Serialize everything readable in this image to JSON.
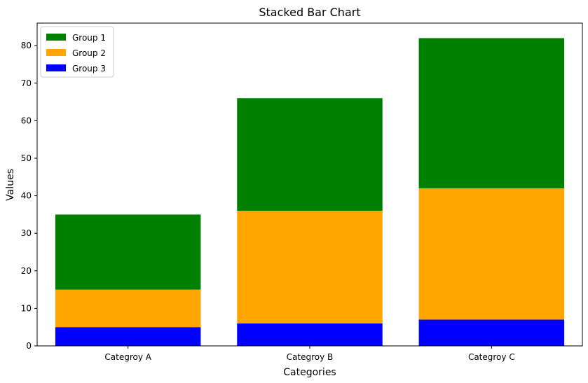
{
  "chart_data": {
    "type": "bar",
    "stacked": true,
    "title": "Stacked Bar Chart",
    "xlabel": "Categories",
    "ylabel": "Values",
    "categories": [
      "Categroy A",
      "Categroy B",
      "Categroy C"
    ],
    "ylim": [
      0,
      86
    ],
    "yticks": [
      0,
      10,
      20,
      30,
      40,
      50,
      60,
      70,
      80
    ],
    "grid": false,
    "legend_position": "top-left",
    "series": [
      {
        "name": "Group 3",
        "color": "#0000ff",
        "values": [
          5,
          6,
          7
        ]
      },
      {
        "name": "Group 2",
        "color": "#ffa500",
        "values": [
          10,
          30,
          35
        ]
      },
      {
        "name": "Group 1",
        "color": "#008000",
        "values": [
          20,
          30,
          40
        ]
      }
    ],
    "legend_order": [
      "Group 1",
      "Group 2",
      "Group 3"
    ]
  }
}
